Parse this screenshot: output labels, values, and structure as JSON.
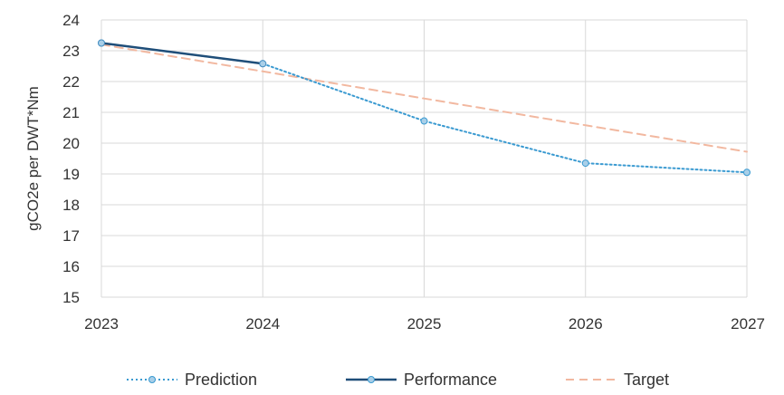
{
  "chart_data": {
    "type": "line",
    "title": "",
    "xlabel": "",
    "ylabel": "gCO2e per DWT*Nm",
    "x": [
      2023,
      2024,
      2025,
      2026,
      2027
    ],
    "xlim": [
      2023,
      2027
    ],
    "ylim": [
      15,
      24
    ],
    "yticks": [
      15,
      16,
      17,
      18,
      19,
      20,
      21,
      22,
      23,
      24
    ],
    "grid": true,
    "legend_position": "bottom",
    "series": [
      {
        "name": "Prediction",
        "x": [
          2023,
          2024,
          2025,
          2026,
          2027
        ],
        "values": [
          23.25,
          22.58,
          20.72,
          19.35,
          19.05
        ],
        "color": "#3a9ad1",
        "style": "dotted",
        "markers": true
      },
      {
        "name": "Performance",
        "x": [
          2023,
          2024
        ],
        "values": [
          23.25,
          22.58
        ],
        "color": "#1f4e79",
        "style": "solid",
        "markers": true
      },
      {
        "name": "Target",
        "x": [
          2023,
          2024,
          2025,
          2026,
          2027
        ],
        "values": [
          23.2,
          22.33,
          21.45,
          20.58,
          19.72
        ],
        "color": "#f2b8a0",
        "style": "dashed",
        "markers": false
      }
    ]
  }
}
